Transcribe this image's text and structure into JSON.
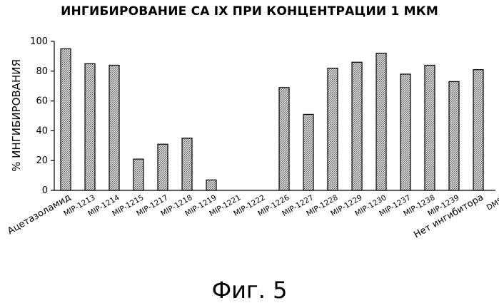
{
  "chart_data": {
    "type": "bar",
    "title": "ИНГИБИРОВАНИЕ СА IX ПРИ КОНЦЕНТРАЦИИ 1 МКМ",
    "xlabel": "",
    "ylabel": "% ИНГИБИРОВАНИЯ",
    "ylim": [
      0,
      100
    ],
    "yticks": [
      0,
      20,
      40,
      60,
      80,
      100
    ],
    "categories": [
      "Ацетазоламид",
      "MIP-1213",
      "MIP-1214",
      "MIP-1215",
      "MIP-1217",
      "MIP-1218",
      "MIP-1219",
      "MIP-1221",
      "MIP-1222",
      "MIP-1226",
      "MIP-1227",
      "MIP-1228",
      "MIP-1229",
      "MIP-1230",
      "MIP-1237",
      "MIP-1238",
      "MIP-1239",
      "Нет ингибитора",
      "DMSO"
    ],
    "values": [
      95,
      85,
      84,
      21,
      31,
      35,
      7,
      0,
      0,
      69,
      51,
      82,
      86,
      92,
      78,
      84,
      73,
      81,
      0
    ],
    "bar_colors": [
      "#b8b8b8",
      "#000000"
    ]
  },
  "figure": {
    "caption": "Фиг. 5"
  }
}
